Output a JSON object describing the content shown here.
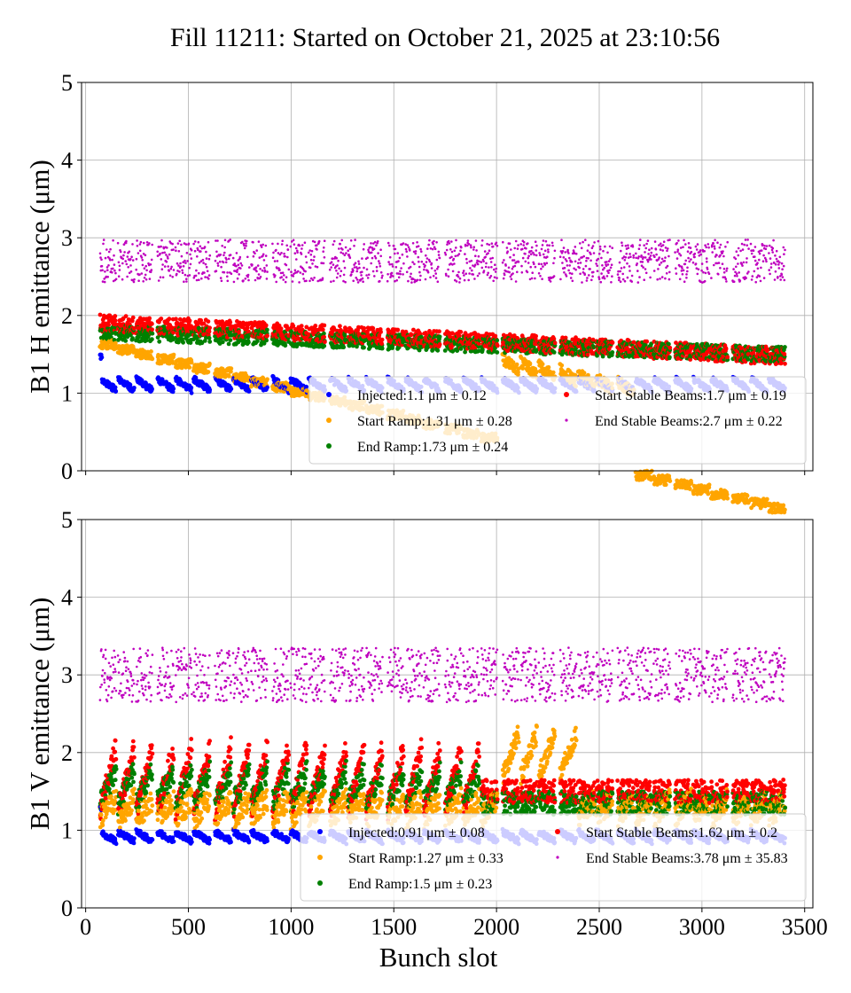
{
  "title": "Fill 11211: Started on October 21, 2025 at 23:10:56",
  "colors": {
    "injected": "#0000ff",
    "start_ramp": "#ffa500",
    "end_ramp": "#008000",
    "start_stable": "#ff0000",
    "end_stable": "#bf00bf",
    "grid": "#b0b0b0"
  },
  "chart_data": [
    {
      "type": "scatter",
      "ylabel": "B1 H emittance (μm)",
      "xlabel": "",
      "xlim": [
        -20,
        3540
      ],
      "ylim": [
        0,
        5
      ],
      "xticks": [
        0,
        500,
        1000,
        1500,
        2000,
        2500,
        3000,
        3500
      ],
      "yticks": [
        0,
        1,
        2,
        3,
        4,
        5
      ],
      "show_xtick_labels": false,
      "grid": true,
      "legend_position": "lower-right",
      "series": [
        {
          "name": "Injected",
          "legend": "Injected:1.1 μm ± 0.12",
          "color_key": "injected",
          "mean": 1.1,
          "std": 0.12
        },
        {
          "name": "Start Ramp",
          "legend": "Start Ramp:1.31 μm ± 0.28",
          "color_key": "start_ramp",
          "mean": 1.31,
          "std": 0.28
        },
        {
          "name": "End Ramp",
          "legend": "End Ramp:1.73 μm ± 0.24",
          "color_key": "end_ramp",
          "mean": 1.73,
          "std": 0.24
        },
        {
          "name": "Start Stable Beams",
          "legend": "Start Stable Beams:1.7 μm ± 0.19",
          "color_key": "start_stable",
          "mean": 1.7,
          "std": 0.19
        },
        {
          "name": "End Stable Beams",
          "legend": "End Stable Beams:2.7 μm ± 0.22",
          "color_key": "end_stable",
          "mean": 2.7,
          "std": 0.22
        }
      ]
    },
    {
      "type": "scatter",
      "ylabel": "B1 V emittance (μm)",
      "xlabel": "Bunch slot",
      "xlim": [
        -20,
        3540
      ],
      "ylim": [
        0,
        5
      ],
      "xticks": [
        0,
        500,
        1000,
        1500,
        2000,
        2500,
        3000,
        3500
      ],
      "yticks": [
        0,
        1,
        2,
        3,
        4,
        5
      ],
      "show_xtick_labels": true,
      "grid": true,
      "legend_position": "lower-right",
      "series": [
        {
          "name": "Injected",
          "legend": "Injected:0.91 μm ± 0.08",
          "color_key": "injected",
          "mean": 0.91,
          "std": 0.08
        },
        {
          "name": "Start Ramp",
          "legend": "Start Ramp:1.27 μm ± 0.33",
          "color_key": "start_ramp",
          "mean": 1.27,
          "std": 0.33
        },
        {
          "name": "End Ramp",
          "legend": "End Ramp:1.5 μm ± 0.23",
          "color_key": "end_ramp",
          "mean": 1.5,
          "std": 0.23
        },
        {
          "name": "Start Stable Beams",
          "legend": "Start Stable Beams:1.62 μm ± 0.2",
          "color_key": "start_stable",
          "mean": 1.62,
          "std": 0.2
        },
        {
          "name": "End Stable Beams",
          "legend": "End Stable Beams:3.78 μm ± 35.83",
          "color_key": "end_stable",
          "mean": 3.78,
          "std": 35.83
        }
      ]
    }
  ]
}
